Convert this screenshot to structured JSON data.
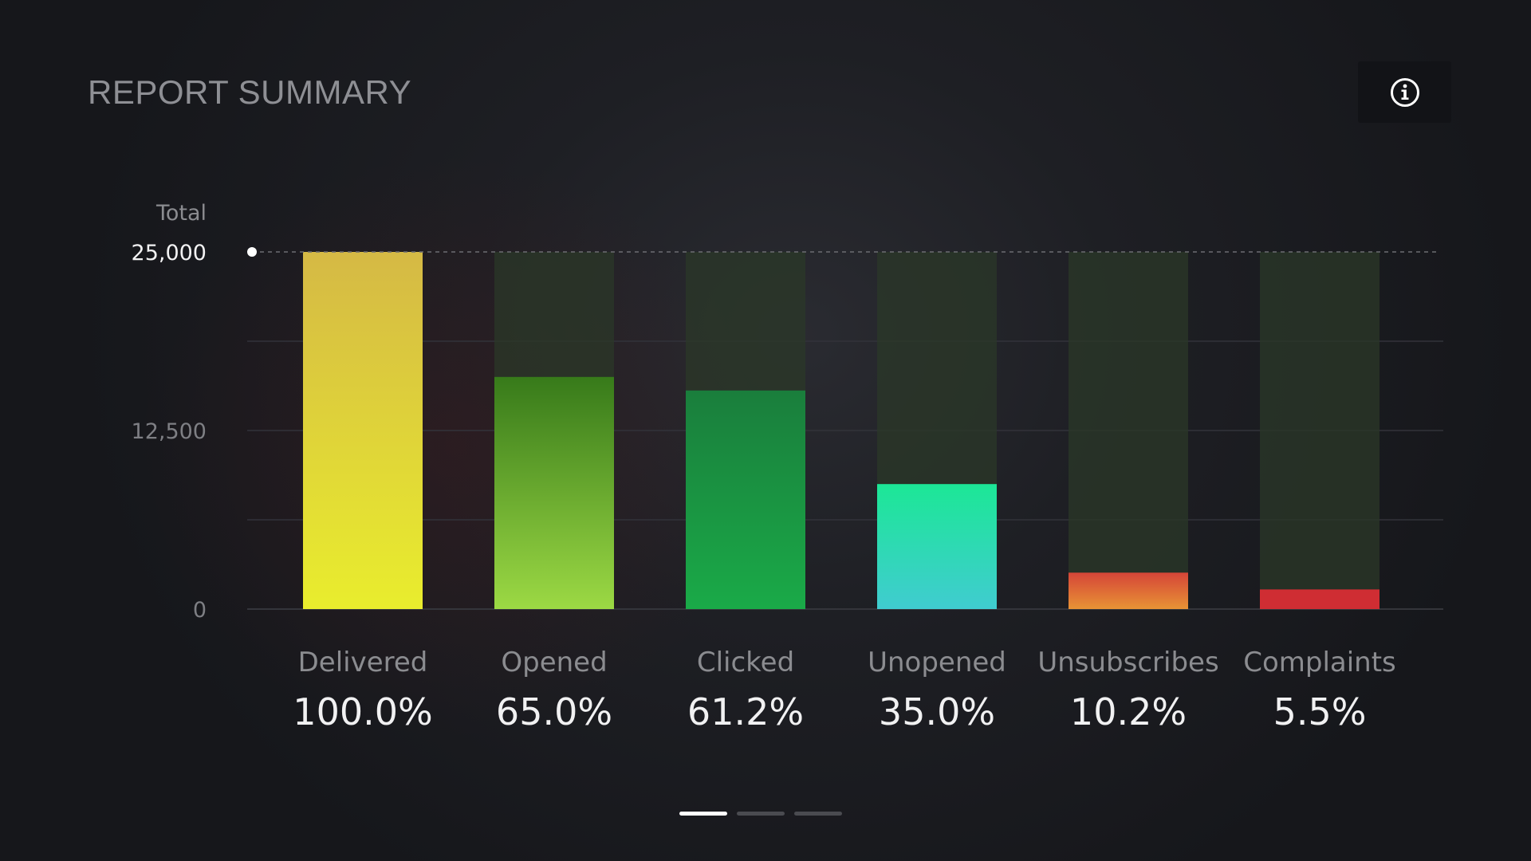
{
  "header": {
    "title": "REPORT SUMMARY",
    "info_icon": "info-circle-icon"
  },
  "pager": {
    "pages": 3,
    "active_index": 0
  },
  "colors": {
    "background": "#16171c",
    "track": "#2b3828",
    "delivered": [
      "#d5b945",
      "#e9ed2d"
    ],
    "opened": [
      "#377a1a",
      "#9cd944"
    ],
    "clicked": [
      "#1a7e3c",
      "#1aaa48"
    ],
    "unopened": [
      "#1ce796",
      "#40ccd0"
    ],
    "unsubscribes": [
      "#d54538",
      "#e89335"
    ],
    "complaints": [
      "#cf2d33",
      "#cf2d33"
    ]
  },
  "chart_data": {
    "type": "bar",
    "ylabel": "Total",
    "ylim": [
      0,
      25000
    ],
    "yticks": [
      {
        "value": 25000,
        "label": "25,000"
      },
      {
        "value": 12500,
        "label": "12,500"
      },
      {
        "value": 0,
        "label": "0"
      }
    ],
    "gridlines": [
      6250,
      12500,
      18750
    ],
    "reference_line": 25000,
    "categories": [
      "Delivered",
      "Opened",
      "Clicked",
      "Unopened",
      "Unsubscribes",
      "Complaints"
    ],
    "values": [
      25000,
      16250,
      15300,
      8750,
      2550,
      1375
    ],
    "percent_labels": [
      "100.0%",
      "65.0%",
      "61.2%",
      "35.0%",
      "10.2%",
      "5.5%"
    ],
    "grid": true,
    "legend": "none"
  }
}
